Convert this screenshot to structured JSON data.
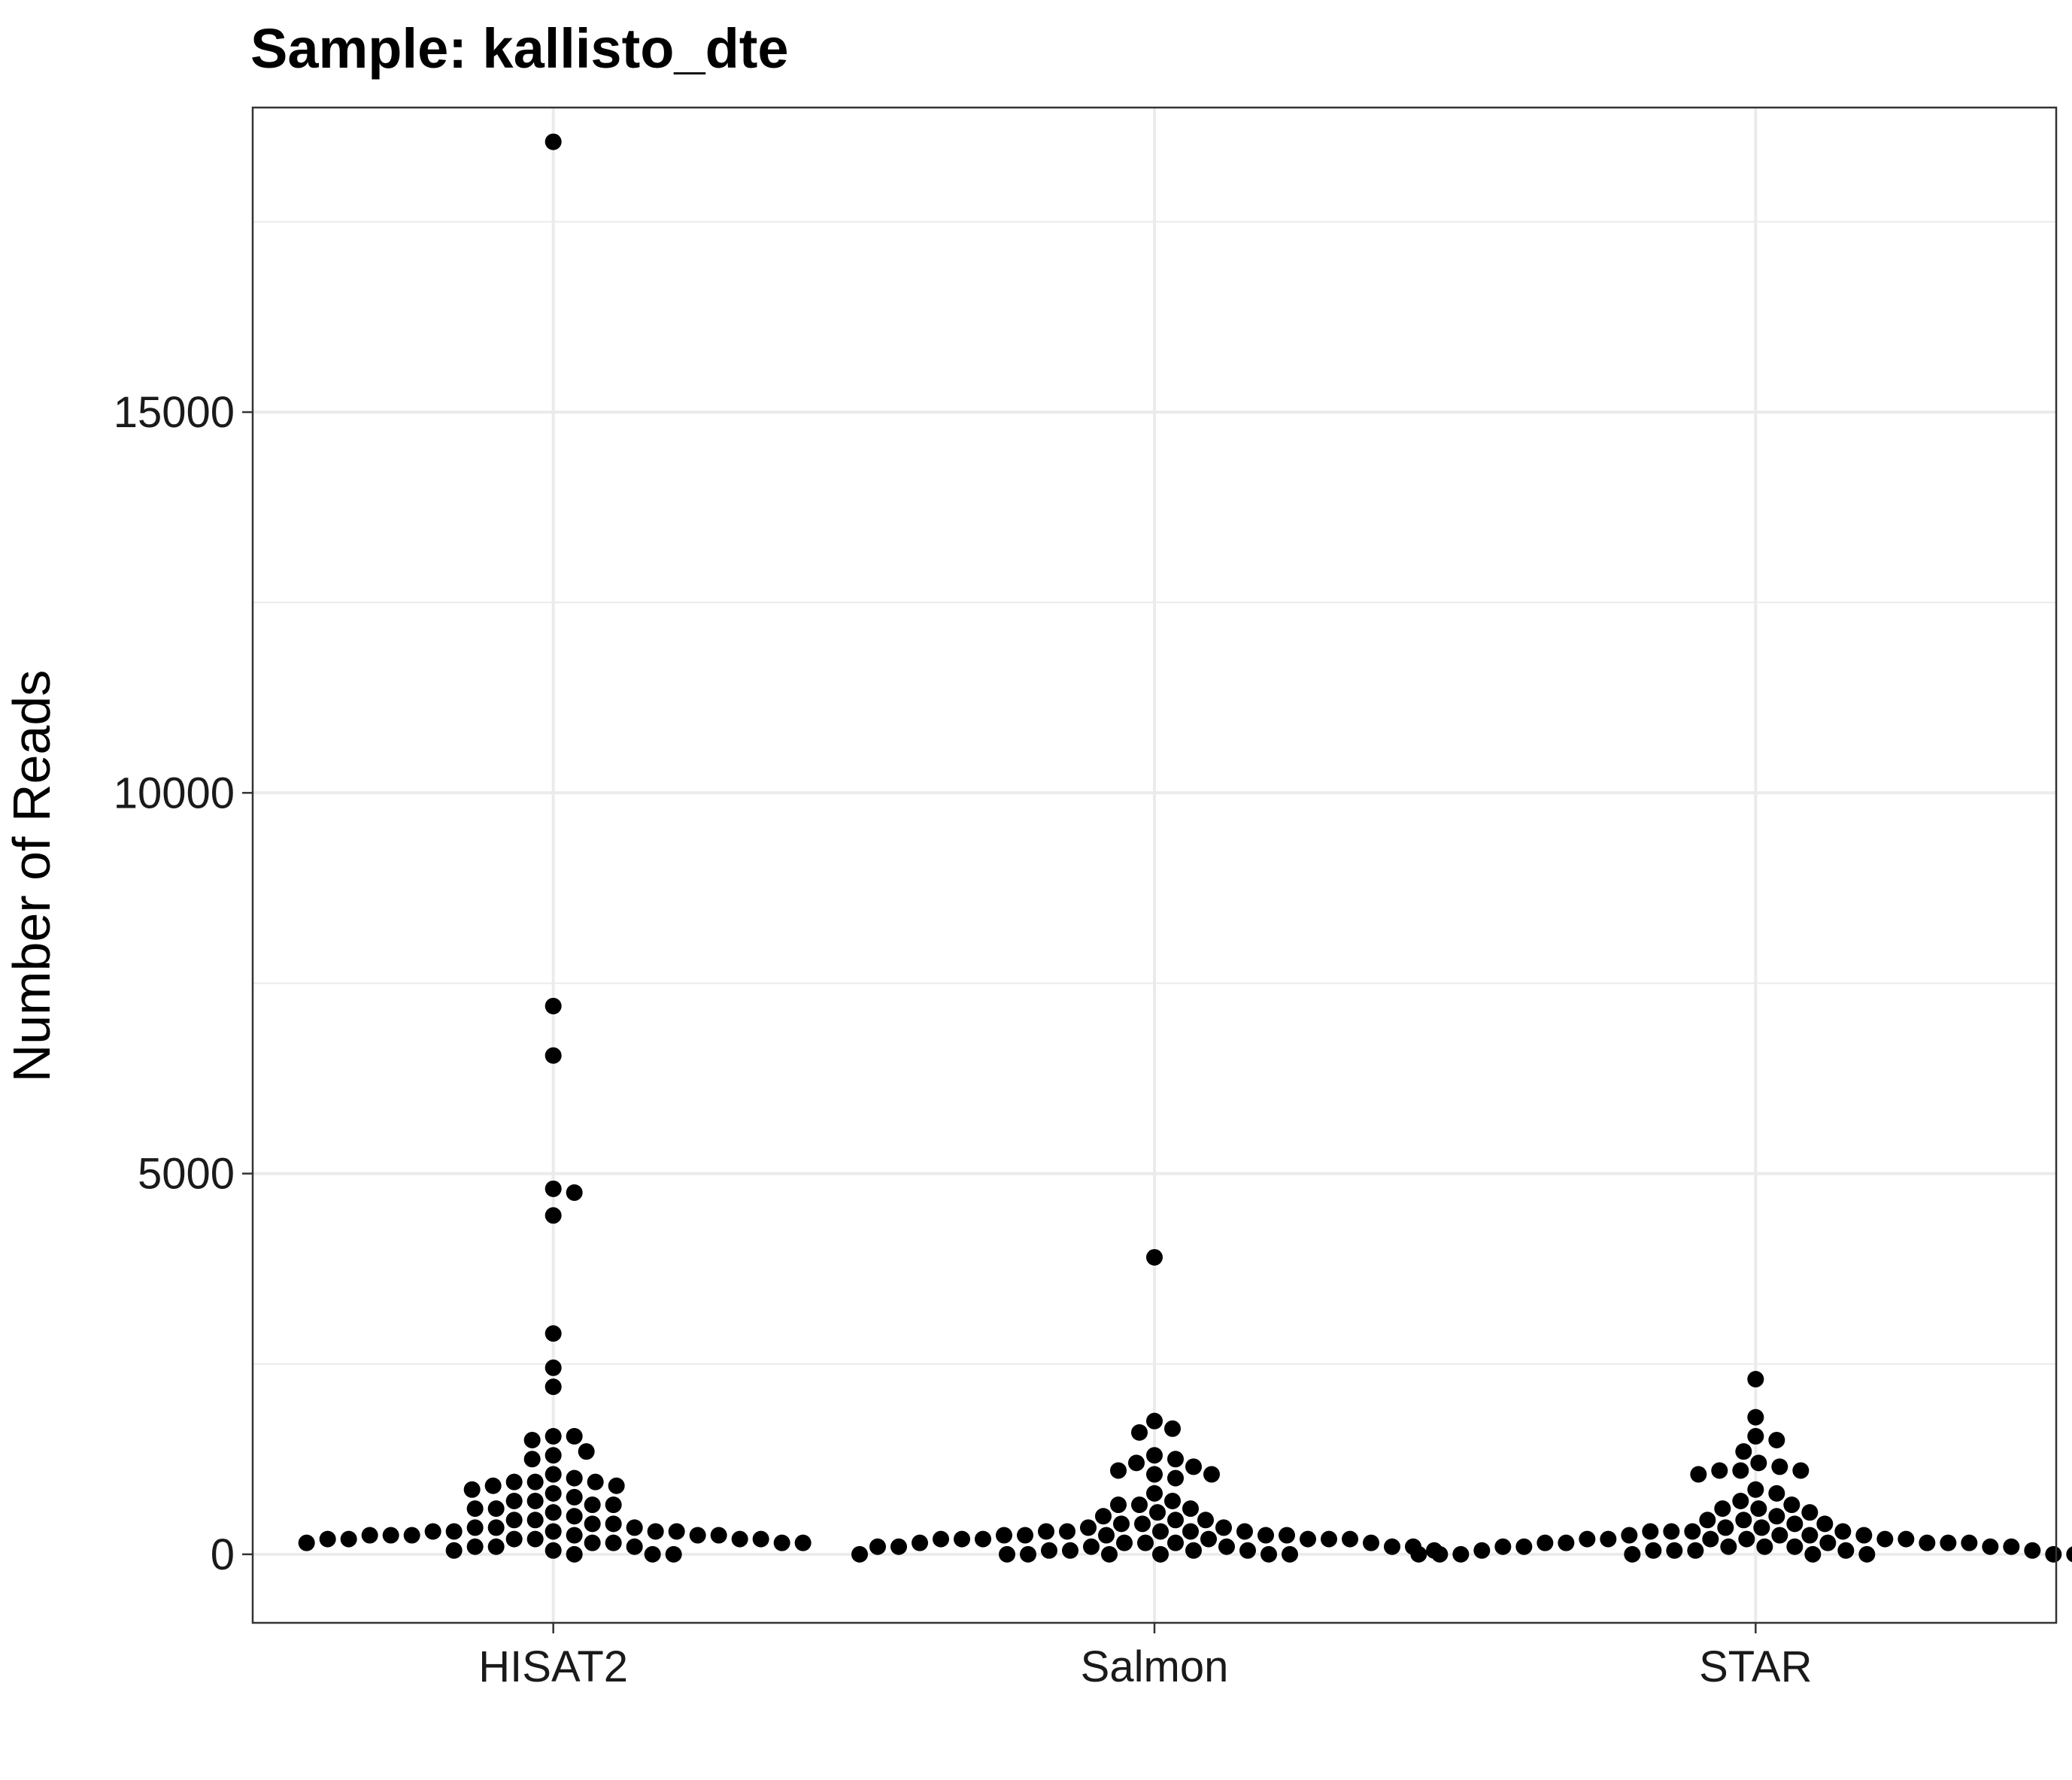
{
  "chart_data": {
    "type": "scatter",
    "subtype": "beeswarm",
    "title": "Sample: kallisto_dte",
    "xlabel": "",
    "ylabel": "Number of Reads",
    "categories": [
      "HISAT2",
      "Salmon",
      "STAR"
    ],
    "ylim": [
      -900,
      19000
    ],
    "y_ticks": [
      0,
      5000,
      10000,
      15000
    ],
    "y_tick_labels": [
      "0",
      "5000",
      "10000",
      "15000"
    ],
    "grid": true,
    "legend": "none",
    "point_color": "#000000",
    "series": [
      {
        "category": "HISAT2",
        "values": [
          18550,
          7200,
          6550,
          4800,
          4750,
          4450,
          2900,
          2450,
          2200,
          1550,
          1550,
          1500,
          1350,
          1300,
          1250,
          1050,
          1000,
          950,
          950,
          950,
          900,
          900,
          850,
          800,
          750,
          700,
          700,
          650,
          650,
          600,
          600,
          550,
          500,
          450,
          450,
          400,
          400,
          350,
          350,
          350,
          300,
          300,
          300,
          300,
          300,
          250,
          250,
          250,
          250,
          250,
          250,
          200,
          200,
          200,
          200,
          200,
          200,
          150,
          150,
          150,
          150,
          150,
          100,
          100,
          100,
          50,
          50,
          0,
          0,
          0
        ]
      },
      {
        "category": "Salmon",
        "values": [
          3900,
          1750,
          1650,
          1600,
          1300,
          1250,
          1200,
          1150,
          1100,
          1050,
          1050,
          1000,
          800,
          700,
          650,
          650,
          600,
          550,
          500,
          450,
          450,
          400,
          400,
          350,
          350,
          300,
          300,
          300,
          300,
          300,
          250,
          250,
          250,
          250,
          250,
          200,
          200,
          200,
          200,
          200,
          200,
          200,
          150,
          150,
          150,
          150,
          150,
          100,
          100,
          100,
          100,
          100,
          100,
          50,
          50,
          50,
          50,
          50,
          0,
          0,
          0,
          0,
          0,
          0,
          0
        ]
      },
      {
        "category": "STAR",
        "values": [
          2300,
          1800,
          1550,
          1500,
          1350,
          1200,
          1150,
          1100,
          1100,
          1100,
          1050,
          850,
          800,
          700,
          650,
          600,
          600,
          550,
          500,
          450,
          450,
          400,
          400,
          350,
          350,
          300,
          300,
          300,
          300,
          250,
          250,
          250,
          250,
          200,
          200,
          200,
          200,
          200,
          200,
          150,
          150,
          150,
          150,
          150,
          150,
          100,
          100,
          100,
          100,
          100,
          100,
          100,
          50,
          50,
          50,
          50,
          50,
          50,
          0,
          0,
          0,
          0,
          0,
          0,
          0,
          0,
          0
        ]
      }
    ]
  }
}
